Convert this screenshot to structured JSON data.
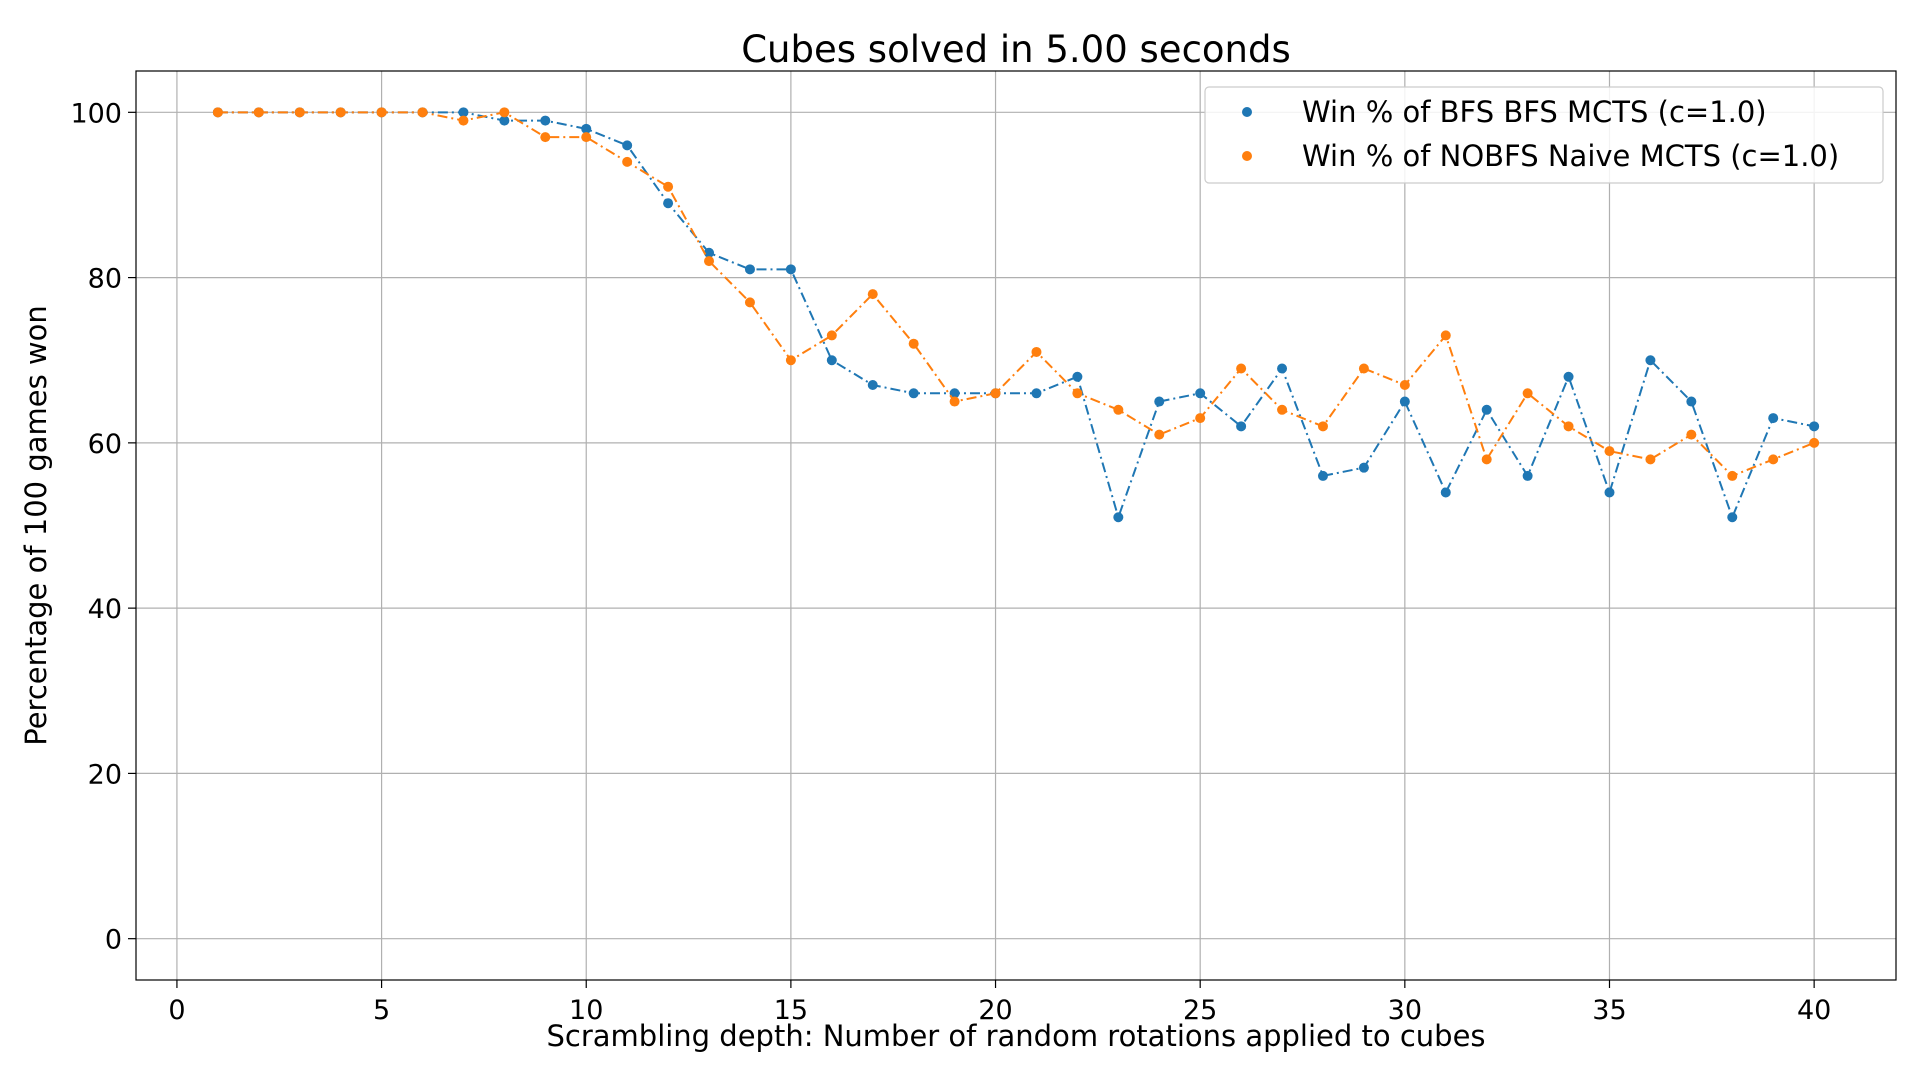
{
  "chart_data": {
    "type": "line",
    "title": "Cubes solved in 5.00 seconds",
    "xlabel": "Scrambling depth: Number of random rotations applied to cubes",
    "ylabel": "Percentage of 100 games won",
    "xlim": [
      -1,
      42
    ],
    "ylim": [
      -5,
      105
    ],
    "xticks": [
      0,
      5,
      10,
      15,
      20,
      25,
      30,
      35,
      40
    ],
    "yticks": [
      0,
      20,
      40,
      60,
      80,
      100
    ],
    "grid": true,
    "legend_position": "top-right",
    "x": [
      1,
      2,
      3,
      4,
      5,
      6,
      7,
      8,
      9,
      10,
      11,
      12,
      13,
      14,
      15,
      16,
      17,
      18,
      19,
      20,
      21,
      22,
      23,
      24,
      25,
      26,
      27,
      28,
      29,
      30,
      31,
      32,
      33,
      34,
      35,
      36,
      37,
      38,
      39,
      40
    ],
    "series": [
      {
        "name": "Win % of BFS BFS MCTS (c=1.0)",
        "color": "#1f77b4",
        "values": [
          100,
          100,
          100,
          100,
          100,
          100,
          100,
          99,
          99,
          98,
          96,
          89,
          83,
          81,
          81,
          70,
          67,
          66,
          66,
          66,
          66,
          68,
          51,
          65,
          66,
          62,
          69,
          56,
          57,
          65,
          54,
          64,
          56,
          68,
          54,
          70,
          65,
          51,
          63,
          62
        ]
      },
      {
        "name": "Win % of NOBFS Naive MCTS (c=1.0)",
        "color": "#ff7f0e",
        "values": [
          100,
          100,
          100,
          100,
          100,
          100,
          99,
          100,
          97,
          97,
          94,
          91,
          82,
          77,
          70,
          73,
          78,
          72,
          65,
          66,
          71,
          66,
          64,
          61,
          63,
          69,
          64,
          62,
          69,
          67,
          73,
          58,
          66,
          62,
          59,
          58,
          61,
          56,
          58,
          60
        ]
      }
    ]
  }
}
